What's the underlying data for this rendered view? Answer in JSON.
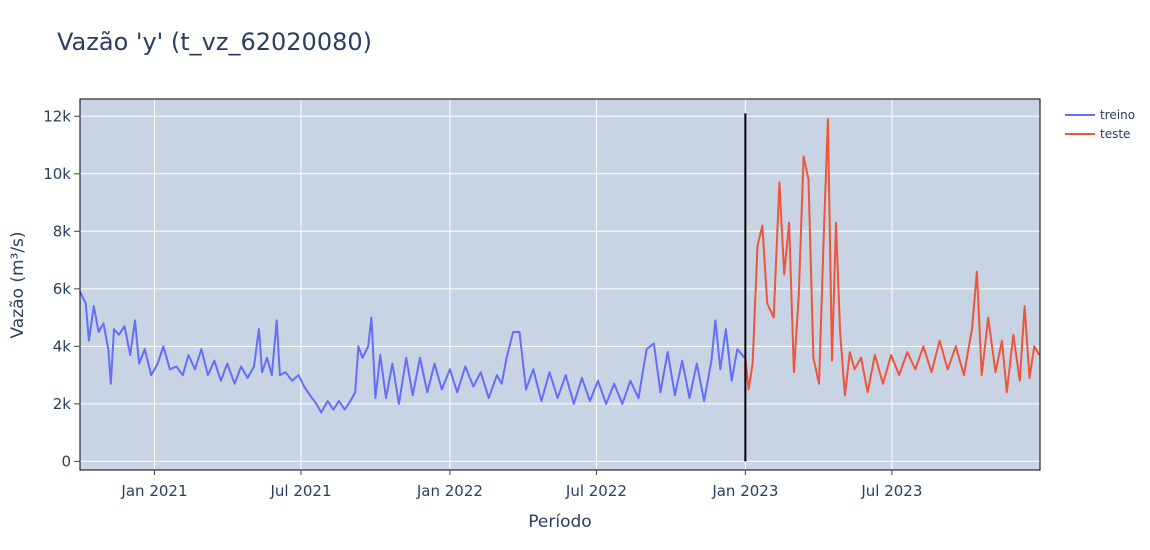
{
  "chart_data": {
    "type": "line",
    "title": "Vazão 'y' (t_vz_62020080)",
    "xlabel": "Período",
    "ylabel": "Vazão (m³/s)",
    "x_range": [
      "2020-10-01",
      "2023-12-31"
    ],
    "ylim": [
      -300,
      12600
    ],
    "y_ticks": [
      0,
      2000,
      4000,
      6000,
      8000,
      10000,
      12000
    ],
    "y_tick_labels": [
      "0",
      "2k",
      "4k",
      "6k",
      "8k",
      "10k",
      "12k"
    ],
    "x_ticks": [
      "2021-01-01",
      "2021-07-01",
      "2022-01-01",
      "2022-07-01",
      "2023-01-01",
      "2023-07-01"
    ],
    "x_tick_labels": [
      "Jan 2021",
      "Jul 2021",
      "Jan 2022",
      "Jul 2022",
      "Jan 2023",
      "Jul 2023"
    ],
    "grid": true,
    "legend_position": "top-right",
    "plot_background": "#c8d4e3",
    "split_line": {
      "x": "2023-01-01",
      "y": [
        0,
        12100
      ],
      "color": "#000000"
    },
    "series": [
      {
        "name": "treino",
        "color": "#636efa",
        "points": [
          [
            "2020-10-01",
            5900
          ],
          [
            "2020-10-08",
            5500
          ],
          [
            "2020-10-12",
            4200
          ],
          [
            "2020-10-18",
            5400
          ],
          [
            "2020-10-24",
            4500
          ],
          [
            "2020-10-30",
            4800
          ],
          [
            "2020-11-05",
            3900
          ],
          [
            "2020-11-08",
            2700
          ],
          [
            "2020-11-12",
            4600
          ],
          [
            "2020-11-18",
            4400
          ],
          [
            "2020-11-25",
            4700
          ],
          [
            "2020-12-02",
            3700
          ],
          [
            "2020-12-08",
            4900
          ],
          [
            "2020-12-13",
            3400
          ],
          [
            "2020-12-20",
            3900
          ],
          [
            "2020-12-28",
            3000
          ],
          [
            "2021-01-05",
            3400
          ],
          [
            "2021-01-12",
            4000
          ],
          [
            "2021-01-20",
            3200
          ],
          [
            "2021-01-28",
            3300
          ],
          [
            "2021-02-05",
            3000
          ],
          [
            "2021-02-12",
            3700
          ],
          [
            "2021-02-20",
            3200
          ],
          [
            "2021-02-28",
            3900
          ],
          [
            "2021-03-08",
            3000
          ],
          [
            "2021-03-16",
            3500
          ],
          [
            "2021-03-24",
            2800
          ],
          [
            "2021-04-01",
            3400
          ],
          [
            "2021-04-10",
            2700
          ],
          [
            "2021-04-18",
            3300
          ],
          [
            "2021-04-26",
            2900
          ],
          [
            "2021-05-04",
            3300
          ],
          [
            "2021-05-10",
            4600
          ],
          [
            "2021-05-14",
            3100
          ],
          [
            "2021-05-20",
            3600
          ],
          [
            "2021-05-26",
            3000
          ],
          [
            "2021-06-01",
            4900
          ],
          [
            "2021-06-05",
            3000
          ],
          [
            "2021-06-12",
            3100
          ],
          [
            "2021-06-20",
            2800
          ],
          [
            "2021-06-28",
            3000
          ],
          [
            "2021-07-05",
            2600
          ],
          [
            "2021-07-12",
            2300
          ],
          [
            "2021-07-20",
            2000
          ],
          [
            "2021-07-26",
            1700
          ],
          [
            "2021-08-03",
            2100
          ],
          [
            "2021-08-10",
            1800
          ],
          [
            "2021-08-17",
            2100
          ],
          [
            "2021-08-24",
            1800
          ],
          [
            "2021-08-31",
            2100
          ],
          [
            "2021-09-06",
            2400
          ],
          [
            "2021-09-10",
            4000
          ],
          [
            "2021-09-15",
            3600
          ],
          [
            "2021-09-22",
            4000
          ],
          [
            "2021-09-26",
            5000
          ],
          [
            "2021-10-01",
            2200
          ],
          [
            "2021-10-07",
            3700
          ],
          [
            "2021-10-14",
            2200
          ],
          [
            "2021-10-22",
            3400
          ],
          [
            "2021-10-30",
            2000
          ],
          [
            "2021-11-08",
            3600
          ],
          [
            "2021-11-16",
            2300
          ],
          [
            "2021-11-25",
            3600
          ],
          [
            "2021-12-04",
            2400
          ],
          [
            "2021-12-13",
            3400
          ],
          [
            "2021-12-22",
            2500
          ],
          [
            "2022-01-01",
            3200
          ],
          [
            "2022-01-10",
            2400
          ],
          [
            "2022-01-20",
            3300
          ],
          [
            "2022-01-30",
            2600
          ],
          [
            "2022-02-08",
            3100
          ],
          [
            "2022-02-18",
            2200
          ],
          [
            "2022-02-28",
            3000
          ],
          [
            "2022-03-06",
            2700
          ],
          [
            "2022-03-12",
            3600
          ],
          [
            "2022-03-20",
            4500
          ],
          [
            "2022-03-28",
            4500
          ],
          [
            "2022-04-05",
            2500
          ],
          [
            "2022-04-14",
            3200
          ],
          [
            "2022-04-24",
            2100
          ],
          [
            "2022-05-04",
            3100
          ],
          [
            "2022-05-14",
            2200
          ],
          [
            "2022-05-24",
            3000
          ],
          [
            "2022-06-03",
            2000
          ],
          [
            "2022-06-13",
            2900
          ],
          [
            "2022-06-23",
            2100
          ],
          [
            "2022-07-03",
            2800
          ],
          [
            "2022-07-13",
            2000
          ],
          [
            "2022-07-23",
            2700
          ],
          [
            "2022-08-02",
            2000
          ],
          [
            "2022-08-12",
            2800
          ],
          [
            "2022-08-22",
            2200
          ],
          [
            "2022-09-01",
            3900
          ],
          [
            "2022-09-10",
            4100
          ],
          [
            "2022-09-18",
            2400
          ],
          [
            "2022-09-27",
            3800
          ],
          [
            "2022-10-06",
            2300
          ],
          [
            "2022-10-15",
            3500
          ],
          [
            "2022-10-24",
            2200
          ],
          [
            "2022-11-02",
            3400
          ],
          [
            "2022-11-11",
            2100
          ],
          [
            "2022-11-20",
            3500
          ],
          [
            "2022-11-25",
            4900
          ],
          [
            "2022-12-01",
            3200
          ],
          [
            "2022-12-08",
            4600
          ],
          [
            "2022-12-15",
            2800
          ],
          [
            "2022-12-22",
            3900
          ],
          [
            "2022-12-31",
            3600
          ]
        ]
      },
      {
        "name": "teste",
        "color": "#ef553b",
        "points": [
          [
            "2023-01-01",
            3600
          ],
          [
            "2023-01-05",
            2500
          ],
          [
            "2023-01-10",
            3400
          ],
          [
            "2023-01-16",
            7500
          ],
          [
            "2023-01-22",
            8200
          ],
          [
            "2023-01-28",
            5500
          ],
          [
            "2023-02-05",
            5000
          ],
          [
            "2023-02-12",
            9700
          ],
          [
            "2023-02-18",
            6500
          ],
          [
            "2023-02-24",
            8300
          ],
          [
            "2023-03-02",
            3100
          ],
          [
            "2023-03-08",
            5800
          ],
          [
            "2023-03-14",
            10600
          ],
          [
            "2023-03-20",
            9800
          ],
          [
            "2023-03-26",
            3600
          ],
          [
            "2023-04-02",
            2700
          ],
          [
            "2023-04-08",
            8000
          ],
          [
            "2023-04-13",
            11900
          ],
          [
            "2023-04-18",
            3500
          ],
          [
            "2023-04-23",
            8300
          ],
          [
            "2023-04-28",
            4500
          ],
          [
            "2023-05-04",
            2300
          ],
          [
            "2023-05-10",
            3800
          ],
          [
            "2023-05-16",
            3200
          ],
          [
            "2023-05-24",
            3600
          ],
          [
            "2023-06-01",
            2400
          ],
          [
            "2023-06-10",
            3700
          ],
          [
            "2023-06-20",
            2700
          ],
          [
            "2023-06-30",
            3700
          ],
          [
            "2023-07-10",
            3000
          ],
          [
            "2023-07-20",
            3800
          ],
          [
            "2023-07-30",
            3200
          ],
          [
            "2023-08-09",
            4000
          ],
          [
            "2023-08-19",
            3100
          ],
          [
            "2023-08-29",
            4200
          ],
          [
            "2023-09-08",
            3200
          ],
          [
            "2023-09-18",
            4000
          ],
          [
            "2023-09-28",
            3000
          ],
          [
            "2023-10-08",
            4600
          ],
          [
            "2023-10-14",
            6600
          ],
          [
            "2023-10-20",
            3000
          ],
          [
            "2023-10-28",
            5000
          ],
          [
            "2023-11-06",
            3100
          ],
          [
            "2023-11-14",
            4200
          ],
          [
            "2023-11-20",
            2400
          ],
          [
            "2023-11-28",
            4400
          ],
          [
            "2023-12-06",
            2800
          ],
          [
            "2023-12-12",
            5400
          ],
          [
            "2023-12-18",
            2900
          ],
          [
            "2023-12-24",
            4000
          ],
          [
            "2023-12-30",
            3700
          ]
        ]
      }
    ]
  }
}
